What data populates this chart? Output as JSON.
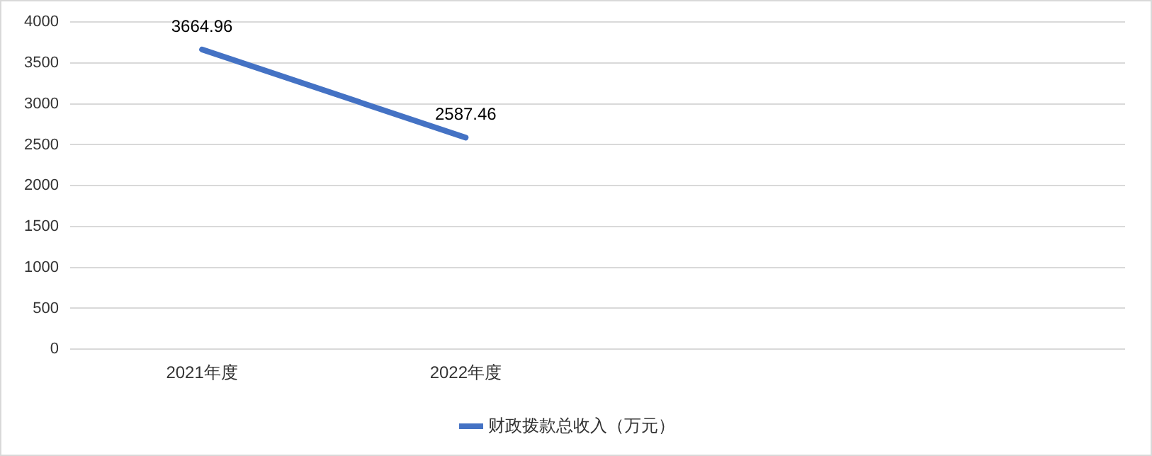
{
  "chart_data": {
    "type": "line",
    "categories": [
      "2021年度",
      "2022年度",
      null,
      null
    ],
    "series": [
      {
        "name": "财政拨款总收入（万元）",
        "color": "#4472c4",
        "values": [
          3664.96,
          2587.46,
          null,
          null
        ]
      }
    ],
    "ylim": [
      0,
      4000
    ],
    "yticks": [
      0,
      500,
      1000,
      1500,
      2000,
      2500,
      3000,
      3500,
      4000
    ],
    "grid": "y",
    "legend": "bottom",
    "data_labels": true,
    "marker": "none"
  }
}
